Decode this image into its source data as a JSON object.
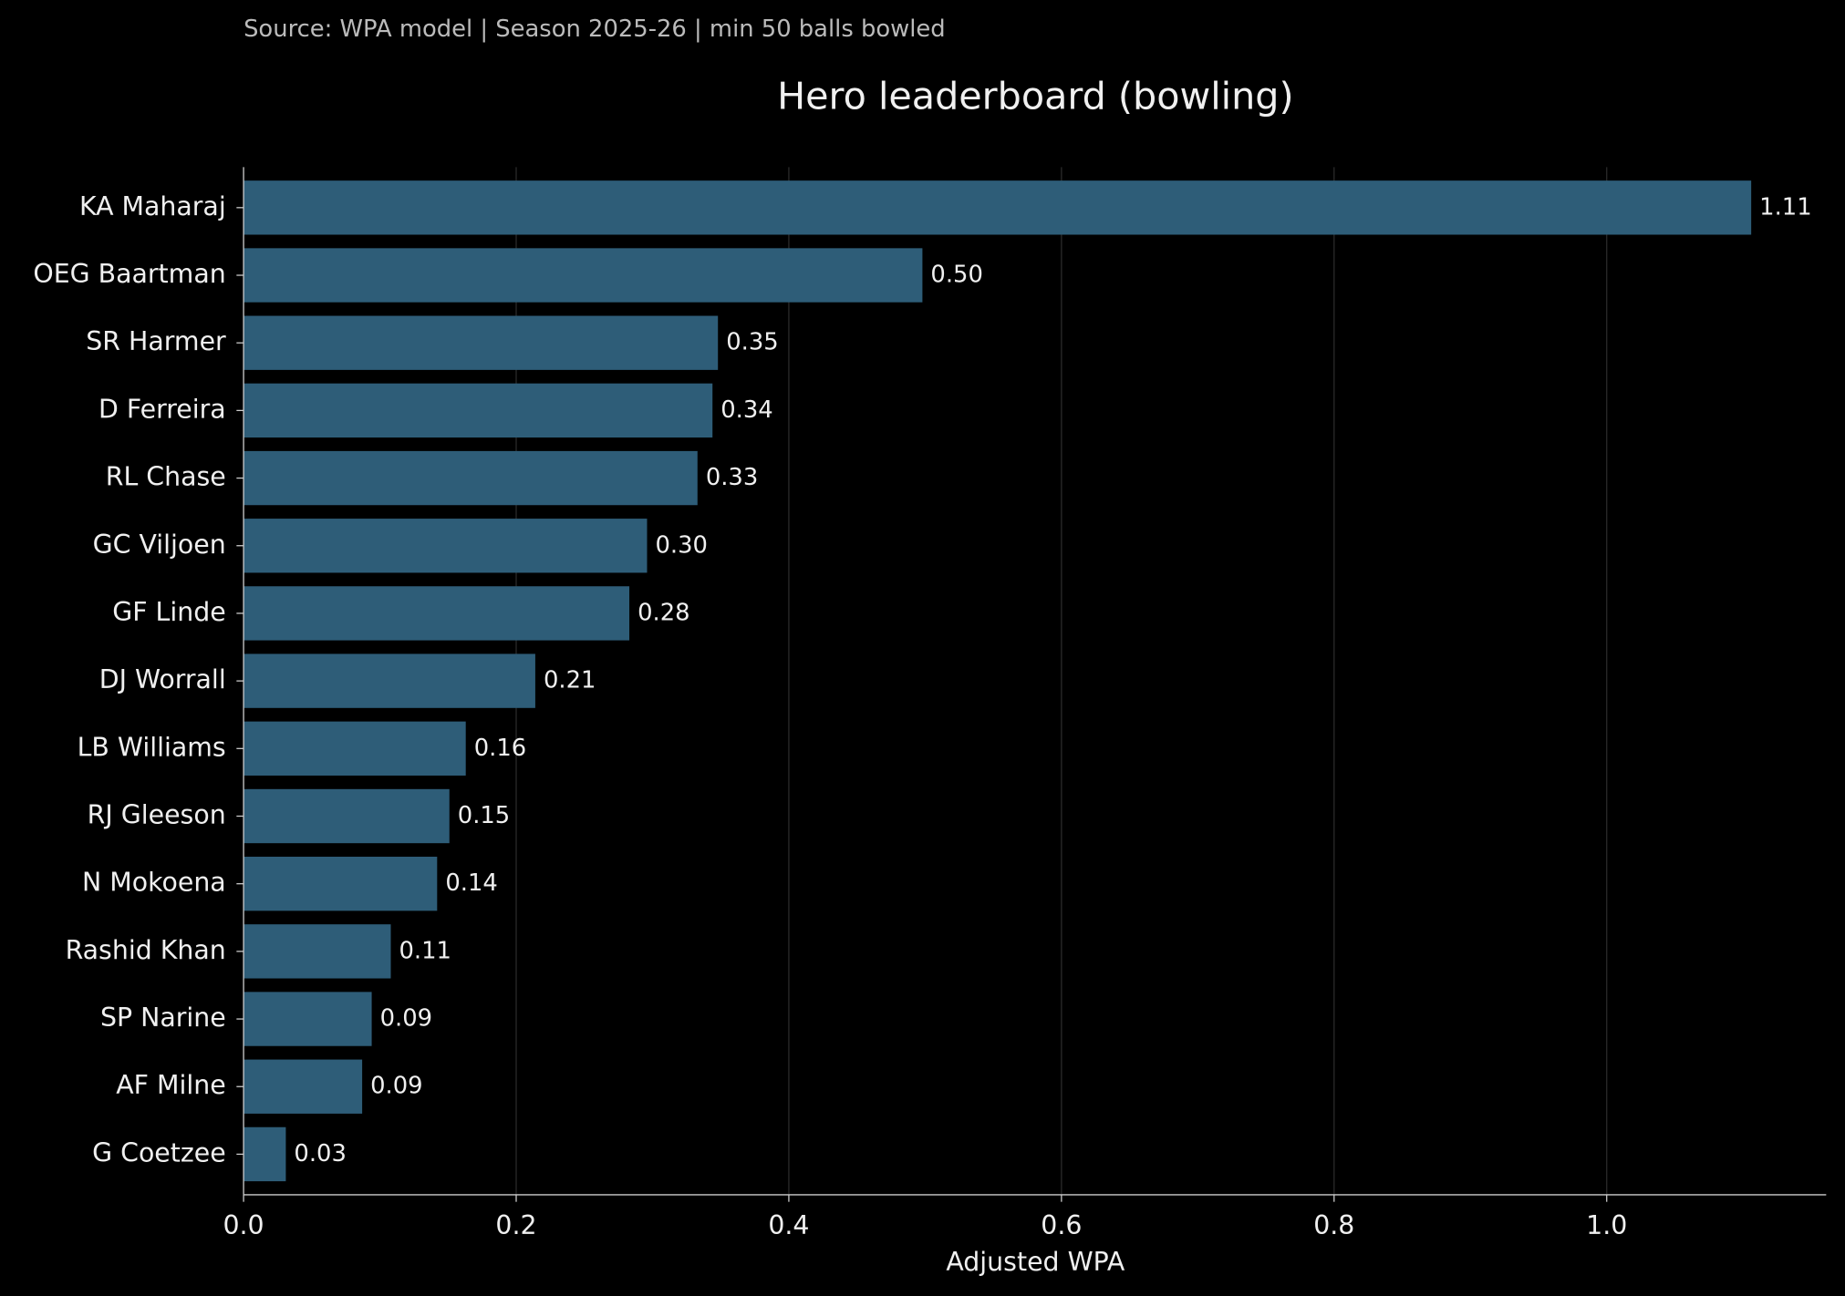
{
  "chart_data": {
    "type": "barh",
    "title": "Hero leaderboard (bowling)",
    "subtitle": "Source: WPA model | Season 2025-26 | min 50 balls bowled",
    "xlabel": "Adjusted WPA",
    "categories": [
      "KA Maharaj",
      "OEG Baartman",
      "SR Harmer",
      "D Ferreira",
      "RL Chase",
      "GC Viljoen",
      "GF Linde",
      "DJ Worrall",
      "LB Williams",
      "RJ Gleeson",
      "N Mokoena",
      "Rashid Khan",
      "SP Narine",
      "AF Milne",
      "G Coetzee"
    ],
    "values": [
      1.106,
      0.498,
      0.348,
      0.344,
      0.333,
      0.296,
      0.283,
      0.214,
      0.163,
      0.151,
      0.142,
      0.108,
      0.094,
      0.087,
      0.031
    ],
    "value_labels": [
      "1.11",
      "0.50",
      "0.35",
      "0.34",
      "0.33",
      "0.30",
      "0.28",
      "0.21",
      "0.16",
      "0.15",
      "0.14",
      "0.11",
      "0.09",
      "0.09",
      "0.03"
    ],
    "color": "#2e5d78",
    "xlim": [
      0,
      1.161
    ],
    "xticks": [
      {
        "value": 0,
        "label": "0.0"
      },
      0.2,
      0.4,
      0.6,
      0.8,
      {
        "value": 1,
        "label": "1.0"
      }
    ],
    "grid": true
  }
}
